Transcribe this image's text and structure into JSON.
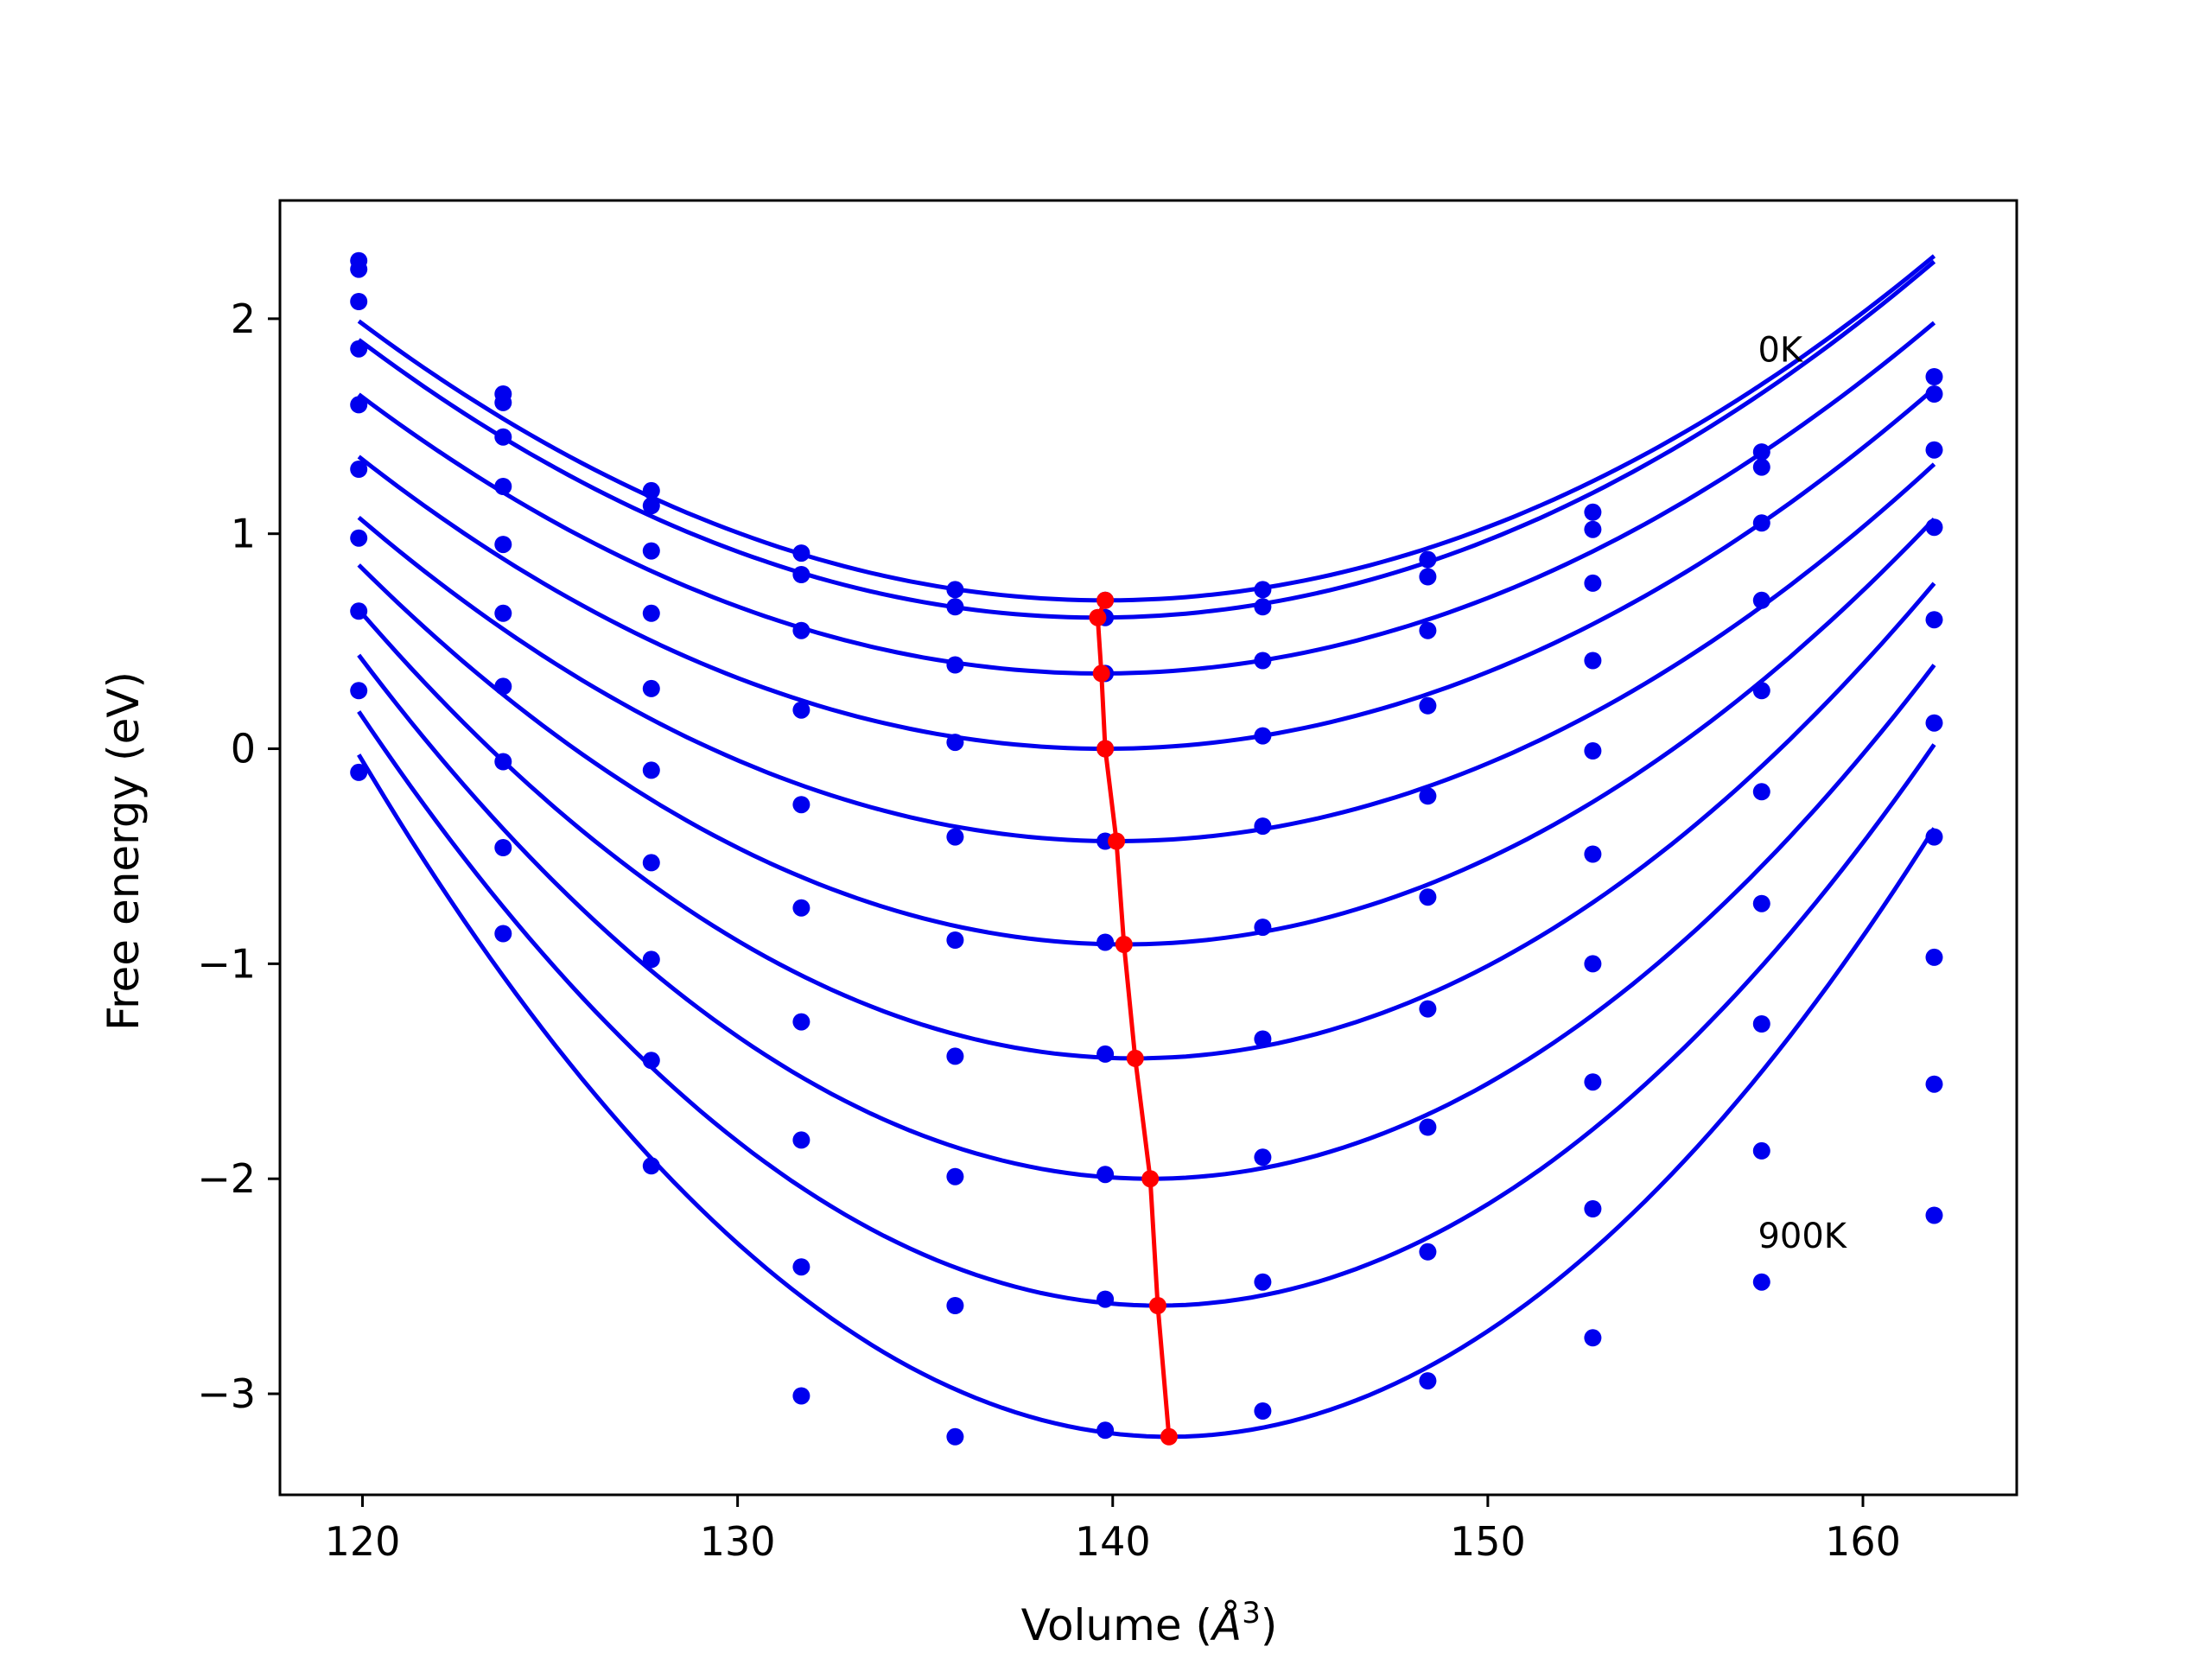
{
  "chart_data": {
    "type": "line",
    "title": "",
    "xlabel_pre": "Volume (",
    "xlabel_sym": "Å",
    "xlabel_sup": "3",
    "xlabel_post": ")",
    "ylabel": "Free energy (eV)",
    "xlim": [
      117.8,
      164.1
    ],
    "ylim": [
      -3.47,
      2.55
    ],
    "xticks": [
      120,
      130,
      140,
      150,
      160
    ],
    "xtick_labels": [
      "120",
      "130",
      "140",
      "150",
      "160"
    ],
    "yticks": [
      -3,
      -2,
      -1,
      0,
      1,
      2
    ],
    "ytick_labels": [
      "−3",
      "−2",
      "−1",
      "0",
      "1",
      "2"
    ],
    "grid": false,
    "legend": "none",
    "annotations": [
      {
        "text": "0K",
        "x": 157.2,
        "y": 1.8
      },
      {
        "text": "900K",
        "x": 157.2,
        "y": -2.32
      }
    ],
    "series_color": "#0000ee",
    "min_color": "#ff0000",
    "volumes": [
      119.9,
      123.75,
      127.7,
      131.7,
      135.8,
      139.8,
      144.0,
      148.4,
      152.8,
      157.3,
      161.9
    ],
    "series": [
      {
        "temperature_index": 0,
        "points": [
          2.27,
          1.65,
          1.2,
          0.91,
          0.74,
          0.69,
          0.74,
          0.88,
          1.1,
          1.38,
          1.73
        ],
        "fit": {
          "a": 0.00328,
          "v0": 139.8,
          "fmin": 0.69
        }
      },
      {
        "temperature_index": 1,
        "points": [
          2.23,
          1.61,
          1.13,
          0.81,
          0.66,
          0.61,
          0.66,
          0.8,
          1.02,
          1.31,
          1.65
        ],
        "fit": {
          "a": 0.00333,
          "v0": 139.6,
          "fmin": 0.61
        }
      },
      {
        "temperature_index": 2,
        "points": [
          2.08,
          1.45,
          0.92,
          0.55,
          0.39,
          0.35,
          0.41,
          0.55,
          0.77,
          1.05,
          1.39
        ],
        "fit": {
          "a": 0.00331,
          "v0": 139.7,
          "fmin": 0.35
        }
      },
      {
        "temperature_index": 3,
        "points": [
          1.86,
          1.22,
          0.63,
          0.18,
          0.03,
          0.0,
          0.06,
          0.2,
          0.41,
          0.69,
          1.03
        ],
        "fit": {
          "a": 0.00343,
          "v0": 139.8,
          "fmin": 0.0
        }
      },
      {
        "temperature_index": 4,
        "points": [
          1.6,
          0.95,
          0.28,
          -0.26,
          -0.41,
          -0.43,
          -0.36,
          -0.22,
          -0.01,
          0.27,
          0.6
        ],
        "fit": {
          "a": 0.00369,
          "v0": 140.1,
          "fmin": -0.43
        }
      },
      {
        "temperature_index": 5,
        "points": [
          1.3,
          0.63,
          -0.1,
          -0.74,
          -0.89,
          -0.9,
          -0.83,
          -0.69,
          -0.49,
          -0.2,
          0.12
        ],
        "fit": {
          "a": 0.00424,
          "v0": 140.3,
          "fmin": -0.91
        }
      },
      {
        "temperature_index": 6,
        "points": [
          0.98,
          0.29,
          -0.53,
          -1.27,
          -1.43,
          -1.42,
          -1.35,
          -1.21,
          -1.0,
          -0.72,
          -0.41
        ],
        "fit": {
          "a": 0.00487,
          "v0": 140.6,
          "fmin": -1.44
        }
      },
      {
        "temperature_index": 7,
        "points": [
          0.64,
          -0.06,
          -0.98,
          -1.82,
          -1.99,
          -1.98,
          -1.9,
          -1.76,
          -1.55,
          -1.28,
          -0.97
        ],
        "fit": {
          "a": 0.00547,
          "v0": 141.0,
          "fmin": -2.0
        }
      },
      {
        "temperature_index": 8,
        "points": [
          0.27,
          -0.46,
          -1.45,
          -2.41,
          -2.59,
          -2.56,
          -2.48,
          -2.34,
          -2.14,
          -1.87,
          -1.56
        ],
        "fit": {
          "a": 0.00609,
          "v0": 141.2,
          "fmin": -2.59
        }
      },
      {
        "temperature_index": 9,
        "points": [
          -0.11,
          -0.86,
          -1.94,
          -3.01,
          -3.2,
          -3.17,
          -3.08,
          -2.94,
          -2.74,
          -2.48,
          -2.17
        ],
        "fit": {
          "a": 0.0068,
          "v0": 141.5,
          "fmin": -3.2
        }
      }
    ],
    "minima_line": {
      "x": [
        139.8,
        139.6,
        139.7,
        139.8,
        140.1,
        140.3,
        140.6,
        141.0,
        141.2,
        141.5
      ],
      "y": [
        0.69,
        0.61,
        0.35,
        0.0,
        -0.43,
        -0.91,
        -1.44,
        -2.0,
        -2.59,
        -3.2
      ]
    }
  }
}
